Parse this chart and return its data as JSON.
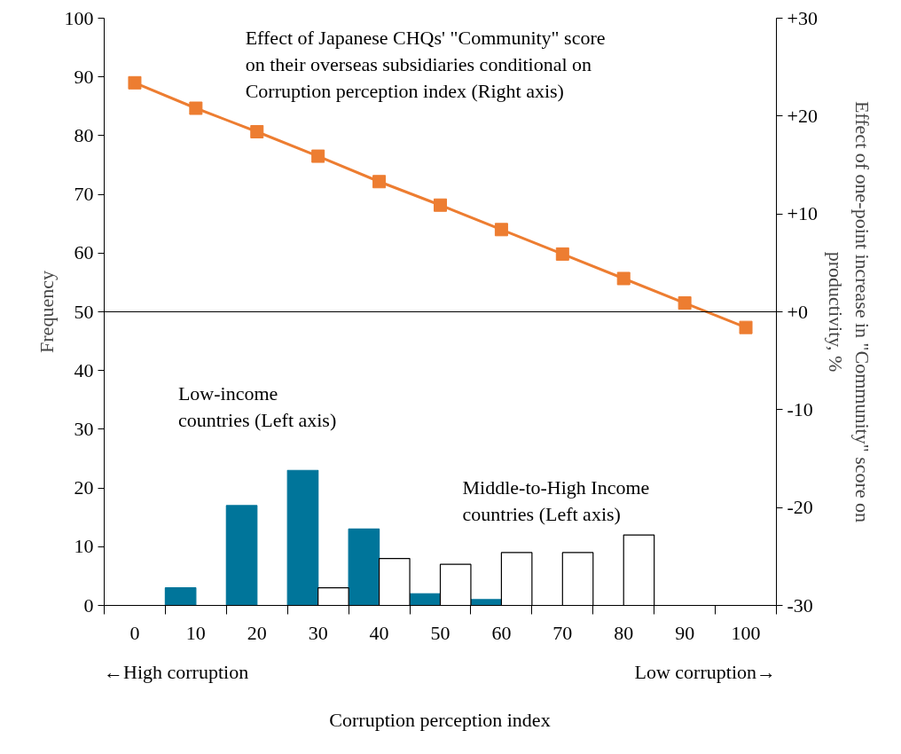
{
  "chart_data": {
    "type": "bar",
    "xlabel": "Corruption perception index",
    "ylabel": "Frequency",
    "y2label": "Effect of one-point increase in \"Community\" score on\nproductivity, %",
    "categories": [
      "0",
      "10",
      "20",
      "30",
      "40",
      "50",
      "60",
      "70",
      "80",
      "90",
      "100"
    ],
    "series": [
      {
        "name": "Low-income\ncountries (Left axis)",
        "color": "#00759a",
        "values": [
          0,
          3,
          17,
          23,
          13,
          2,
          1,
          0,
          0,
          0,
          0
        ]
      },
      {
        "name": "Middle-to-High Income\ncountries (Left axis)",
        "color": "#ffffff",
        "values": [
          0,
          0,
          0,
          3,
          8,
          7,
          9,
          9,
          12,
          0,
          0
        ]
      },
      {
        "type": "line",
        "axis": "y2",
        "name": "Effect of Japanese CHQs' \"Community\" score\non their overseas subsidiaries conditional on\nCorruption perception index (Right axis)",
        "color": "#ed7d31",
        "values": [
          23.4,
          20.8,
          18.4,
          15.9,
          13.3,
          10.9,
          8.4,
          5.9,
          3.4,
          0.9,
          -1.6
        ]
      }
    ],
    "ylim": [
      0,
      100
    ],
    "yticks": [
      0,
      10,
      20,
      30,
      40,
      50,
      60,
      70,
      80,
      90,
      100
    ],
    "y2lim": [
      -30,
      30
    ],
    "y2ticks": [
      {
        "value": -30,
        "label": "-30"
      },
      {
        "value": -20,
        "label": "-20"
      },
      {
        "value": -10,
        "label": "-10"
      },
      {
        "value": 0,
        "label": "+0"
      },
      {
        "value": 10,
        "label": "+10"
      },
      {
        "value": 20,
        "label": "+20"
      },
      {
        "value": 30,
        "label": "+30"
      }
    ],
    "ref_lines": [
      {
        "axis": "y2",
        "value": 0,
        "color": "#000000"
      }
    ],
    "annotations": [
      "←High corruption",
      "Low corruption→"
    ],
    "marker": "square",
    "grid": false,
    "legend": false
  }
}
